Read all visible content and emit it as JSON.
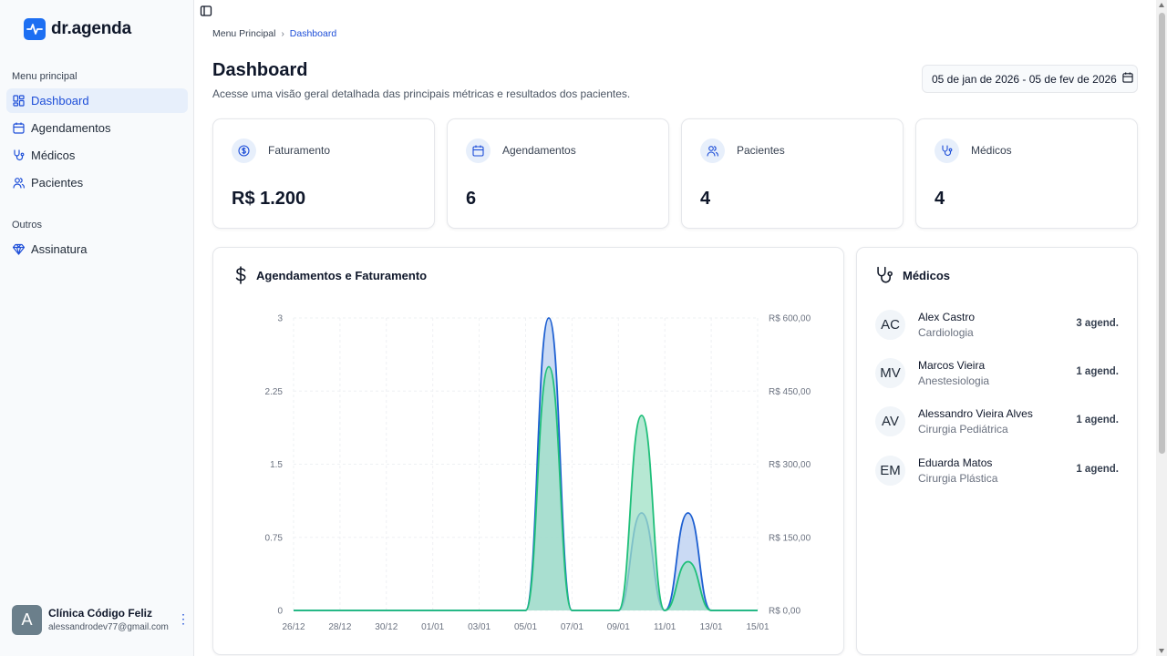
{
  "brand": {
    "name": "dr.agenda",
    "accent": "#1d6ff2"
  },
  "sidebar": {
    "group_main": "Menu principal",
    "group_other": "Outros",
    "items": [
      {
        "label": "Dashboard",
        "icon": "dashboard-icon",
        "active": true
      },
      {
        "label": "Agendamentos",
        "icon": "calendar-icon",
        "active": false
      },
      {
        "label": "Médicos",
        "icon": "stethoscope-icon",
        "active": false
      },
      {
        "label": "Pacientes",
        "icon": "users-icon",
        "active": false
      }
    ],
    "other_items": [
      {
        "label": "Assinatura",
        "icon": "gem-icon"
      }
    ],
    "user": {
      "initial": "A",
      "name": "Clínica Código Feliz",
      "email": "alessandrodev77@gmail.com"
    }
  },
  "breadcrumb": {
    "root": "Menu Principal",
    "current": "Dashboard"
  },
  "header": {
    "title": "Dashboard",
    "subtitle": "Acesse uma visão geral detalhada das principais métricas e resultados dos pacientes.",
    "date_range": "05 de jan de 2026 - 05 de fev de 2026"
  },
  "stats": [
    {
      "label": "Faturamento",
      "value": "R$ 1.200",
      "icon": "dollar-circle-icon"
    },
    {
      "label": "Agendamentos",
      "value": "6",
      "icon": "calendar-icon"
    },
    {
      "label": "Pacientes",
      "value": "4",
      "icon": "users-icon"
    },
    {
      "label": "Médicos",
      "value": "4",
      "icon": "stethoscope-icon"
    }
  ],
  "chart_data": {
    "type": "area",
    "title": "Agendamentos e Faturamento",
    "categories": [
      "26/12",
      "27/12",
      "28/12",
      "29/12",
      "30/12",
      "31/12",
      "01/01",
      "02/01",
      "03/01",
      "04/01",
      "05/01",
      "06/01",
      "07/01",
      "08/01",
      "09/01",
      "10/01",
      "11/01",
      "12/01",
      "13/01",
      "14/01",
      "15/01"
    ],
    "x_tick_labels": [
      "26/12",
      "28/12",
      "30/12",
      "01/01",
      "03/01",
      "05/01",
      "07/01",
      "09/01",
      "11/01",
      "13/01",
      "15/01"
    ],
    "y_left": {
      "min": 0,
      "max": 3,
      "ticks": [
        "0",
        "0.75",
        "1.5",
        "2.25",
        "3"
      ]
    },
    "y_right": {
      "min": 0,
      "max": 600,
      "ticks": [
        "R$ 0,00",
        "R$ 150,00",
        "R$ 300,00",
        "R$ 450,00",
        "R$ 600,00"
      ]
    },
    "grid": true,
    "series": [
      {
        "axis": "left",
        "color": "#1d5fd1",
        "fill": "#b8cdf0",
        "values": [
          0,
          0,
          0,
          0,
          0,
          0,
          0,
          0,
          0,
          0,
          0,
          3,
          0,
          0,
          0,
          1,
          0,
          1,
          0,
          0,
          0
        ]
      },
      {
        "axis": "right",
        "color": "#1fbf7a",
        "fill": "#9ee0c4",
        "values": [
          0,
          0,
          0,
          0,
          0,
          0,
          0,
          0,
          0,
          0,
          0,
          500,
          0,
          0,
          0,
          400,
          0,
          100,
          0,
          0,
          0
        ]
      }
    ]
  },
  "doctors_panel": {
    "title": "Médicos",
    "items": [
      {
        "initials": "AC",
        "name": "Alex Castro",
        "specialty": "Cardiologia",
        "count": "3 agend."
      },
      {
        "initials": "MV",
        "name": "Marcos Vieira",
        "specialty": "Anestesiologia",
        "count": "1 agend."
      },
      {
        "initials": "AV",
        "name": "Alessandro Vieira Alves",
        "specialty": "Cirurgia Pediátrica",
        "count": "1 agend."
      },
      {
        "initials": "EM",
        "name": "Eduarda Matos",
        "specialty": "Cirurgia Plástica",
        "count": "1 agend."
      }
    ]
  }
}
